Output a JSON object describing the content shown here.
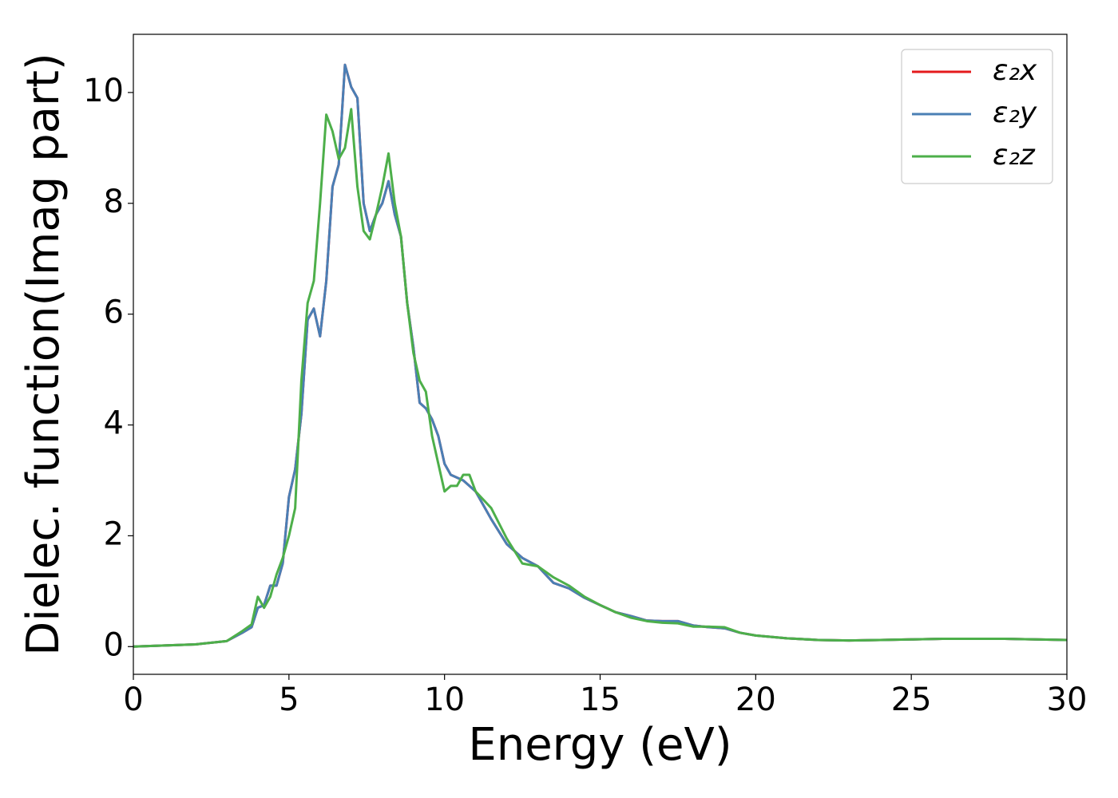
{
  "chart_data": {
    "type": "line",
    "xlabel": "Energy (eV)",
    "ylabel": "Dielec. function(Imag part)",
    "x": [
      0,
      1,
      2,
      3,
      3.5,
      3.8,
      4,
      4.2,
      4.4,
      4.6,
      4.8,
      5,
      5.2,
      5.4,
      5.6,
      5.8,
      6,
      6.2,
      6.4,
      6.6,
      6.8,
      7,
      7.2,
      7.4,
      7.6,
      7.8,
      8,
      8.2,
      8.4,
      8.6,
      8.8,
      9,
      9.2,
      9.4,
      9.6,
      9.8,
      10,
      10.2,
      10.4,
      10.6,
      10.8,
      11,
      11.5,
      12,
      12.5,
      13,
      13.5,
      14,
      14.5,
      15,
      15.5,
      16,
      16.5,
      17,
      17.5,
      18,
      18.5,
      19,
      19.5,
      20,
      21,
      22,
      23,
      24,
      25,
      26,
      27,
      28,
      29,
      30
    ],
    "series": [
      {
        "name": "ε₂x",
        "color": "#e41a1c",
        "values": [
          0,
          0.02,
          0.04,
          0.1,
          0.25,
          0.35,
          0.7,
          0.75,
          1.1,
          1.1,
          1.5,
          2.7,
          3.2,
          4.2,
          5.9,
          6.1,
          5.6,
          6.6,
          8.3,
          8.7,
          10.5,
          10.1,
          9.9,
          8.0,
          7.5,
          7.8,
          8.0,
          8.4,
          7.8,
          7.4,
          6.2,
          5.4,
          4.4,
          4.3,
          4.1,
          3.8,
          3.3,
          3.1,
          3.05,
          3.0,
          2.9,
          2.8,
          2.3,
          1.85,
          1.6,
          1.45,
          1.15,
          1.05,
          0.88,
          0.75,
          0.62,
          0.55,
          0.47,
          0.46,
          0.46,
          0.38,
          0.35,
          0.33,
          0.25,
          0.2,
          0.15,
          0.12,
          0.11,
          0.12,
          0.13,
          0.14,
          0.14,
          0.14,
          0.13,
          0.12
        ]
      },
      {
        "name": "ε₂y",
        "color": "#4a7fb5",
        "values": [
          0,
          0.02,
          0.04,
          0.1,
          0.25,
          0.35,
          0.7,
          0.75,
          1.1,
          1.1,
          1.5,
          2.7,
          3.2,
          4.2,
          5.9,
          6.1,
          5.6,
          6.6,
          8.3,
          8.7,
          10.5,
          10.1,
          9.9,
          8.0,
          7.5,
          7.8,
          8.0,
          8.4,
          7.8,
          7.4,
          6.2,
          5.4,
          4.4,
          4.3,
          4.1,
          3.8,
          3.3,
          3.1,
          3.05,
          3.0,
          2.9,
          2.8,
          2.3,
          1.85,
          1.6,
          1.45,
          1.15,
          1.05,
          0.88,
          0.75,
          0.62,
          0.55,
          0.47,
          0.46,
          0.46,
          0.38,
          0.35,
          0.33,
          0.25,
          0.2,
          0.15,
          0.12,
          0.11,
          0.12,
          0.13,
          0.14,
          0.14,
          0.14,
          0.13,
          0.12
        ]
      },
      {
        "name": "ε₂z",
        "color": "#4daf4a",
        "values": [
          0,
          0.02,
          0.04,
          0.1,
          0.28,
          0.4,
          0.9,
          0.7,
          0.9,
          1.3,
          1.6,
          2.0,
          2.5,
          4.8,
          6.2,
          6.6,
          8.0,
          9.6,
          9.3,
          8.8,
          9.0,
          9.7,
          8.3,
          7.5,
          7.35,
          7.8,
          8.3,
          8.9,
          8.0,
          7.4,
          6.2,
          5.3,
          4.8,
          4.6,
          3.8,
          3.3,
          2.8,
          2.9,
          2.9,
          3.1,
          3.1,
          2.8,
          2.5,
          1.95,
          1.5,
          1.45,
          1.25,
          1.1,
          0.9,
          0.75,
          0.62,
          0.52,
          0.46,
          0.43,
          0.42,
          0.36,
          0.36,
          0.35,
          0.25,
          0.2,
          0.15,
          0.12,
          0.11,
          0.12,
          0.13,
          0.14,
          0.14,
          0.14,
          0.13,
          0.12
        ]
      }
    ],
    "xlim": [
      0,
      30
    ],
    "xticks": [
      0,
      5,
      10,
      15,
      20,
      25,
      30
    ],
    "ylim": [
      -0.5,
      11.05
    ],
    "yticks": [
      0,
      2,
      4,
      6,
      8,
      10
    ],
    "legend": "upper right"
  }
}
